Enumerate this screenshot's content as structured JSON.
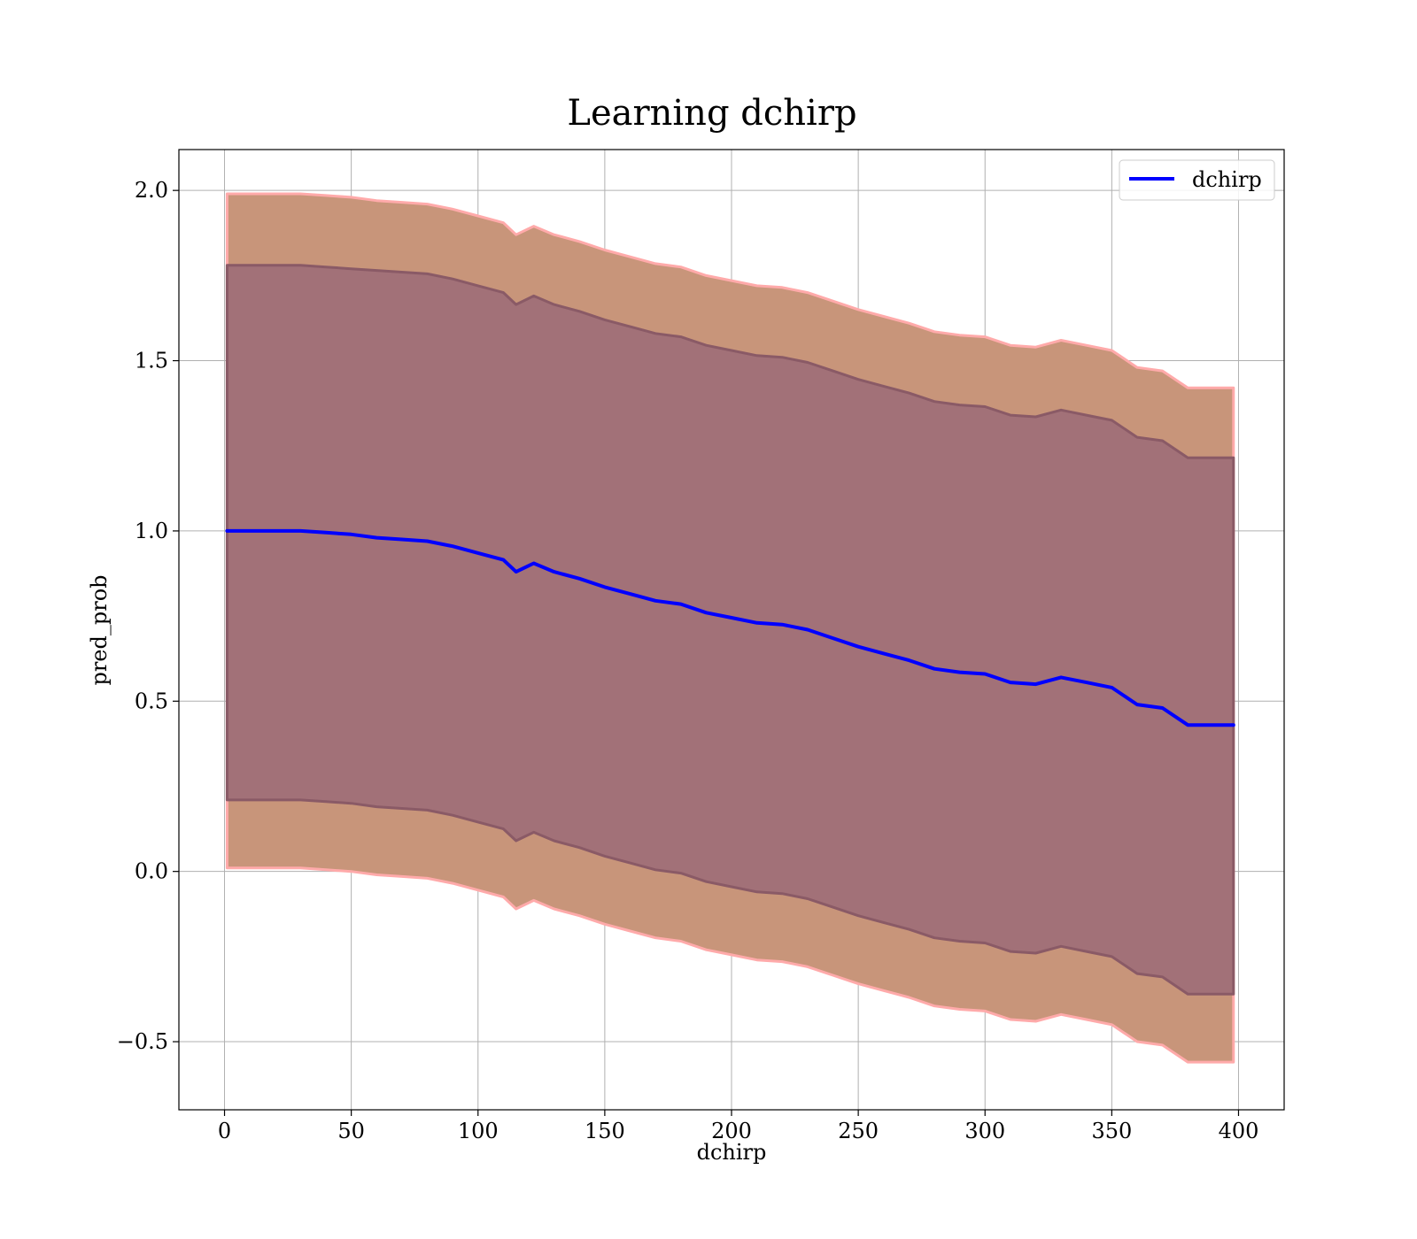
{
  "chart_data": {
    "type": "line",
    "title": "Learning dchirp",
    "xlabel": "dchirp",
    "ylabel": "pred_prob",
    "xlim": [
      -18,
      418
    ],
    "ylim": [
      -0.7,
      2.12
    ],
    "grid": true,
    "legend_position": "top-right",
    "x_ticks": [
      0,
      50,
      100,
      150,
      200,
      250,
      300,
      350,
      400
    ],
    "y_ticks": [
      -0.5,
      0.0,
      0.5,
      1.0,
      1.5,
      2.0
    ],
    "x_tick_labels": [
      "0",
      "50",
      "100",
      "150",
      "200",
      "250",
      "300",
      "350",
      "400"
    ],
    "y_tick_labels": [
      "−0.5",
      "0.0",
      "0.5",
      "1.0",
      "1.5",
      "2.0"
    ],
    "series": [
      {
        "name": "dchirp",
        "color": "#0000ff",
        "x": [
          1,
          10,
          20,
          30,
          40,
          50,
          60,
          70,
          80,
          90,
          100,
          110,
          115,
          122,
          130,
          140,
          150,
          160,
          170,
          180,
          190,
          200,
          210,
          220,
          230,
          240,
          250,
          260,
          270,
          280,
          290,
          300,
          310,
          320,
          330,
          340,
          350,
          360,
          370,
          380,
          398
        ],
        "values": [
          1.0,
          1.0,
          1.0,
          1.0,
          0.995,
          0.99,
          0.98,
          0.975,
          0.97,
          0.955,
          0.935,
          0.915,
          0.88,
          0.905,
          0.88,
          0.86,
          0.835,
          0.815,
          0.795,
          0.785,
          0.76,
          0.745,
          0.73,
          0.725,
          0.71,
          0.685,
          0.66,
          0.64,
          0.62,
          0.595,
          0.585,
          0.58,
          0.555,
          0.55,
          0.57,
          0.555,
          0.54,
          0.49,
          0.48,
          0.43,
          0.43
        ]
      }
    ],
    "bands": [
      {
        "name": "outer-band",
        "fill": "#c8957a",
        "edge": "#ffaaaa",
        "upper": [
          1.99,
          1.99,
          1.99,
          1.99,
          1.985,
          1.98,
          1.97,
          1.965,
          1.96,
          1.945,
          1.925,
          1.905,
          1.87,
          1.895,
          1.87,
          1.85,
          1.825,
          1.805,
          1.785,
          1.775,
          1.75,
          1.735,
          1.72,
          1.715,
          1.7,
          1.675,
          1.65,
          1.63,
          1.61,
          1.585,
          1.575,
          1.57,
          1.545,
          1.54,
          1.56,
          1.545,
          1.53,
          1.48,
          1.47,
          1.42,
          1.42
        ],
        "lower": [
          0.01,
          0.01,
          0.01,
          0.01,
          0.005,
          0.0,
          -0.01,
          -0.015,
          -0.02,
          -0.035,
          -0.055,
          -0.075,
          -0.11,
          -0.085,
          -0.11,
          -0.13,
          -0.155,
          -0.175,
          -0.195,
          -0.205,
          -0.23,
          -0.245,
          -0.26,
          -0.265,
          -0.28,
          -0.305,
          -0.33,
          -0.35,
          -0.37,
          -0.395,
          -0.405,
          -0.41,
          -0.435,
          -0.44,
          -0.42,
          -0.435,
          -0.45,
          -0.5,
          -0.51,
          -0.56,
          -0.56
        ]
      },
      {
        "name": "inner-band",
        "fill": "#a27178",
        "edge": "#8a5a66",
        "upper": [
          1.78,
          1.78,
          1.78,
          1.78,
          1.775,
          1.77,
          1.765,
          1.76,
          1.755,
          1.74,
          1.72,
          1.7,
          1.665,
          1.69,
          1.665,
          1.645,
          1.62,
          1.6,
          1.58,
          1.57,
          1.545,
          1.53,
          1.515,
          1.51,
          1.495,
          1.47,
          1.445,
          1.425,
          1.405,
          1.38,
          1.37,
          1.365,
          1.34,
          1.335,
          1.355,
          1.34,
          1.325,
          1.275,
          1.265,
          1.215,
          1.215
        ],
        "lower": [
          0.21,
          0.21,
          0.21,
          0.21,
          0.205,
          0.2,
          0.19,
          0.185,
          0.18,
          0.165,
          0.145,
          0.125,
          0.09,
          0.115,
          0.09,
          0.07,
          0.045,
          0.025,
          0.005,
          -0.005,
          -0.03,
          -0.045,
          -0.06,
          -0.065,
          -0.08,
          -0.105,
          -0.13,
          -0.15,
          -0.17,
          -0.195,
          -0.205,
          -0.21,
          -0.235,
          -0.24,
          -0.22,
          -0.235,
          -0.25,
          -0.3,
          -0.31,
          -0.36,
          -0.36
        ]
      }
    ]
  }
}
